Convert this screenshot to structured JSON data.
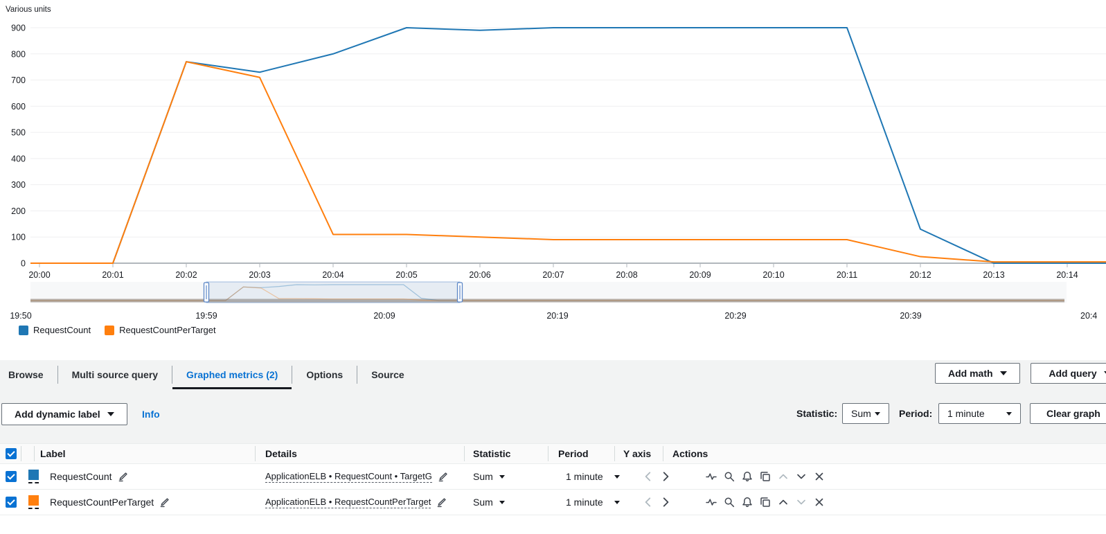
{
  "chart_data": {
    "type": "line",
    "title": "",
    "ylabel": "Various units",
    "xlabel": "",
    "ylim": [
      0,
      900
    ],
    "ytick_step": 100,
    "grid": true,
    "legend_position": "bottom-left",
    "categories": [
      "20:00",
      "20:01",
      "20:02",
      "20:03",
      "20:04",
      "20:05",
      "20:06",
      "20:07",
      "20:08",
      "20:09",
      "20:10",
      "20:11",
      "20:12",
      "20:13",
      "20:14"
    ],
    "series": [
      {
        "name": "RequestCount",
        "color": "#1f77b4",
        "values": [
          0,
          0,
          770,
          730,
          800,
          900,
          890,
          900,
          900,
          900,
          900,
          900,
          130,
          0,
          0
        ]
      },
      {
        "name": "RequestCountPerTarget",
        "color": "#ff7f0e",
        "values": [
          0,
          0,
          770,
          710,
          110,
          110,
          100,
          90,
          90,
          90,
          90,
          90,
          25,
          5,
          5
        ]
      }
    ],
    "timeline": {
      "labels": [
        "19:50",
        "19:59",
        "20:09",
        "20:19",
        "20:29",
        "20:39",
        "20:4"
      ],
      "selection_start_label": "19:59",
      "selection_end_label": "20:13"
    }
  },
  "legend": {
    "items": [
      {
        "label": "RequestCount",
        "color": "#1f77b4"
      },
      {
        "label": "RequestCountPerTarget",
        "color": "#ff7f0e"
      }
    ]
  },
  "tabs": [
    {
      "label": "Browse"
    },
    {
      "label": "Multi source query"
    },
    {
      "label": "Graphed metrics (2)",
      "active": true
    },
    {
      "label": "Options"
    },
    {
      "label": "Source"
    }
  ],
  "toolbar": {
    "add_math_label": "Add math",
    "add_query_label": "Add query"
  },
  "controls": {
    "add_dynamic_label": "Add dynamic label",
    "info_label": "Info",
    "statistic_label": "Statistic:",
    "statistic_value": "Sum",
    "period_label": "Period:",
    "period_value": "1 minute",
    "clear_graph_label": "Clear graph"
  },
  "table": {
    "columns": [
      "Label",
      "Details",
      "Statistic",
      "Period",
      "Y axis",
      "Actions"
    ],
    "rows": [
      {
        "label": "RequestCount",
        "color": "#1f77b4",
        "details": "ApplicationELB • RequestCount • TargetG",
        "statistic": "Sum",
        "period": "1 minute"
      },
      {
        "label": "RequestCountPerTarget",
        "color": "#ff7f0e",
        "details": "ApplicationELB • RequestCountPerTarget",
        "statistic": "Sum",
        "period": "1 minute"
      }
    ]
  },
  "colors": {
    "accent_blue": "#0972d3",
    "checkbox_blue": "#0972d3",
    "panel_gray": "#f2f3f3",
    "series_blue": "#1f77b4",
    "series_orange": "#ff7f0e"
  }
}
